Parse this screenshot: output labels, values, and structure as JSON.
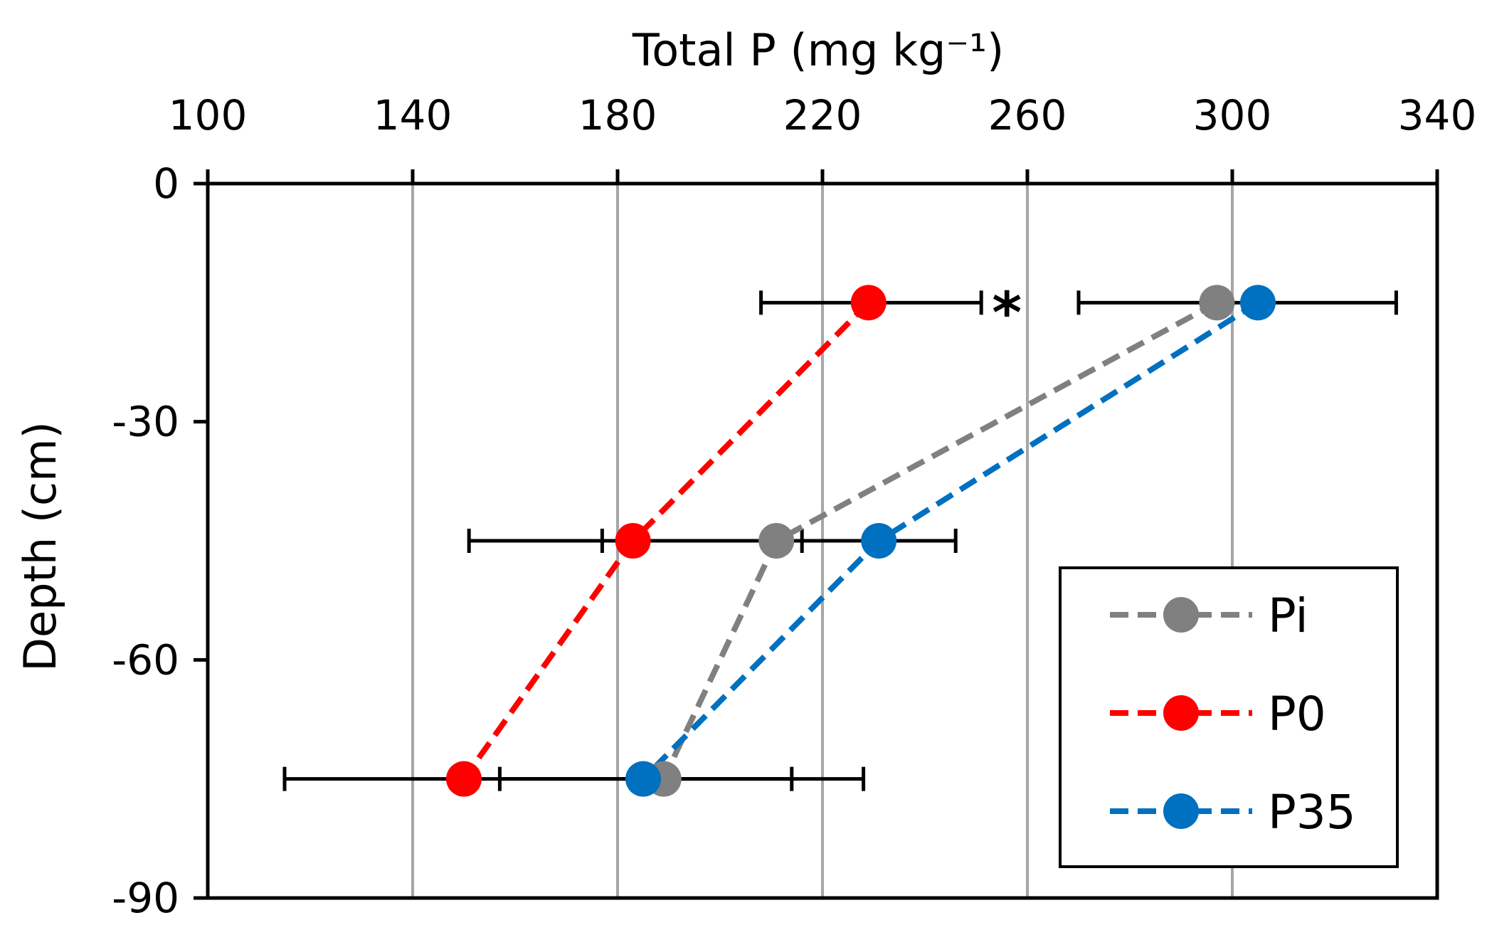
{
  "chart_data": {
    "type": "line",
    "orientation": "depth-profile",
    "title": "",
    "xlabel": "Total P (mg kg⁻¹)",
    "ylabel": "Depth (cm)",
    "xlim": [
      100,
      340
    ],
    "ylim": [
      -90,
      0
    ],
    "xticks": [
      100,
      140,
      180,
      220,
      260,
      300,
      340
    ],
    "yticks": [
      0,
      -30,
      -60,
      -90
    ],
    "grid": "vertical gridlines",
    "legend_position": "bottom-right",
    "series": [
      {
        "name": "Pi",
        "color": "#808080",
        "x": [
          297,
          211,
          189
        ],
        "y": [
          -15,
          -45,
          -75
        ],
        "error_bars": []
      },
      {
        "name": "P0",
        "color": "#ff0000",
        "x": [
          229,
          183,
          150
        ],
        "y": [
          -15,
          -45,
          -75
        ],
        "error_bars": [
          {
            "y": -15,
            "low": 208,
            "high": 251
          },
          {
            "y": -45,
            "low": 151,
            "high": 216
          },
          {
            "y": -75,
            "low": 115,
            "high": 214
          }
        ]
      },
      {
        "name": "P35",
        "color": "#0070c0",
        "x": [
          305,
          231,
          185
        ],
        "y": [
          -15,
          -45,
          -75
        ],
        "error_bars": [
          {
            "y": -15,
            "low": 270,
            "high": 332
          },
          {
            "y": -45,
            "low": 177,
            "high": 246
          },
          {
            "y": -75,
            "low": 157,
            "high": 228
          }
        ]
      }
    ],
    "annotations": [
      {
        "text": "*",
        "x": 256,
        "y": -15
      }
    ]
  }
}
